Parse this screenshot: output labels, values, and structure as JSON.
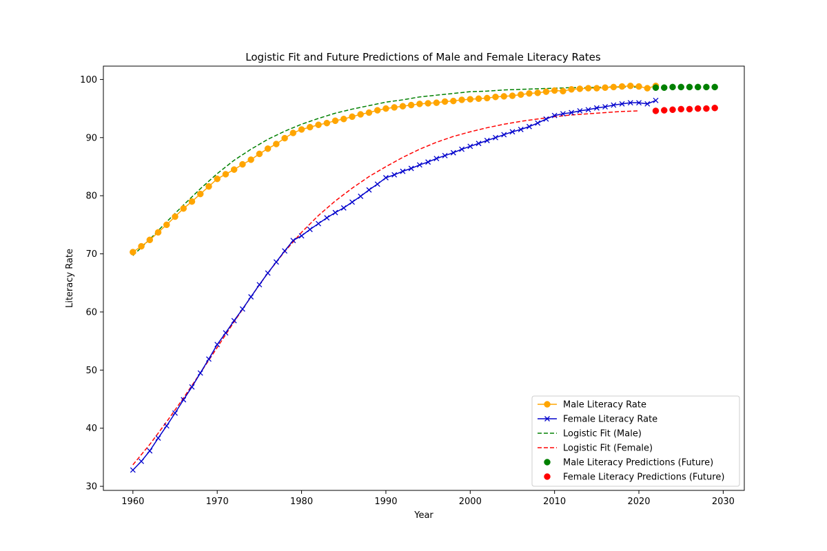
{
  "chart_data": {
    "type": "line",
    "title": "Logistic Fit and Future Predictions of Male and Female Literacy Rates",
    "xlabel": "Year",
    "ylabel": "Literacy Rate",
    "xlim": [
      1956.5,
      2032.5
    ],
    "ylim": [
      29.3,
      102.3
    ],
    "xticks": [
      1960,
      1970,
      1980,
      1990,
      2000,
      2010,
      2020,
      2030
    ],
    "yticks": [
      30,
      40,
      50,
      60,
      70,
      80,
      90,
      100
    ],
    "grid": false,
    "legend_position": "lower-right",
    "series": [
      {
        "name": "Male Literacy Rate",
        "kind": "line-marker-circle",
        "color": "#ffa500",
        "x_start": 1960,
        "values": [
          70.3,
          71.3,
          72.4,
          73.7,
          75.0,
          76.4,
          77.8,
          79.0,
          80.3,
          81.6,
          82.9,
          83.7,
          84.5,
          85.4,
          86.2,
          87.2,
          88.1,
          88.9,
          89.9,
          90.8,
          91.4,
          91.8,
          92.2,
          92.5,
          92.9,
          93.2,
          93.6,
          94.0,
          94.3,
          94.7,
          95.0,
          95.2,
          95.4,
          95.6,
          95.8,
          95.9,
          96.0,
          96.2,
          96.3,
          96.5,
          96.6,
          96.7,
          96.8,
          97.0,
          97.1,
          97.2,
          97.4,
          97.6,
          97.7,
          97.9,
          98.1,
          98.0,
          98.3,
          98.4,
          98.5,
          98.5,
          98.6,
          98.7,
          98.8,
          98.9,
          98.8,
          98.5,
          98.9
        ]
      },
      {
        "name": "Female Literacy Rate",
        "kind": "line-marker-x",
        "color": "#0000cc",
        "x_start": 1960,
        "values": [
          32.8,
          34.3,
          36.1,
          38.3,
          40.4,
          42.6,
          44.9,
          47.1,
          49.5,
          51.9,
          54.4,
          56.4,
          58.5,
          60.5,
          62.6,
          64.7,
          66.7,
          68.6,
          70.5,
          72.3,
          73.1,
          74.2,
          75.2,
          76.2,
          77.1,
          77.9,
          78.9,
          79.9,
          81.0,
          82.0,
          83.1,
          83.6,
          84.2,
          84.7,
          85.3,
          85.8,
          86.4,
          86.9,
          87.4,
          88.0,
          88.5,
          89.0,
          89.5,
          90.0,
          90.5,
          91.0,
          91.4,
          91.9,
          92.5,
          93.2,
          93.8,
          94.1,
          94.3,
          94.6,
          94.8,
          95.1,
          95.3,
          95.6,
          95.8,
          96.0,
          96.0,
          95.8,
          96.4
        ]
      },
      {
        "name": "Logistic Fit (Male)",
        "kind": "dashed-line",
        "color": "#008000",
        "x_start": 1960,
        "x_step": 2,
        "values": [
          69.7,
          72.5,
          75.5,
          78.4,
          81.2,
          83.8,
          86.1,
          88.0,
          89.7,
          91.1,
          92.3,
          93.3,
          94.2,
          94.9,
          95.5,
          96.1,
          96.5,
          97.0,
          97.3,
          97.6,
          97.9,
          98.0,
          98.2,
          98.3,
          98.4,
          98.5,
          98.6,
          98.6,
          98.7,
          98.7,
          98.7
        ]
      },
      {
        "name": "Logistic Fit (Female)",
        "kind": "dashed-line",
        "color": "#ff0000",
        "x_start": 1960,
        "x_step": 2,
        "values": [
          33.7,
          37.2,
          41.1,
          45.2,
          49.5,
          53.9,
          58.3,
          62.6,
          66.7,
          70.4,
          73.7,
          76.6,
          79.1,
          81.3,
          83.3,
          85.0,
          86.6,
          88.0,
          89.2,
          90.2,
          91.0,
          91.7,
          92.3,
          92.8,
          93.2,
          93.6,
          93.9,
          94.1,
          94.3,
          94.5,
          94.6
        ]
      },
      {
        "name": "Male Literacy Predictions (Future)",
        "kind": "scatter",
        "color": "#008000",
        "x_start": 2022,
        "values": [
          98.6,
          98.6,
          98.7,
          98.7,
          98.7,
          98.7,
          98.7,
          98.7
        ]
      },
      {
        "name": "Female Literacy Predictions (Future)",
        "kind": "scatter",
        "color": "#ff0000",
        "x_start": 2022,
        "values": [
          94.6,
          94.7,
          94.8,
          94.9,
          94.9,
          95.0,
          95.0,
          95.1
        ]
      }
    ]
  }
}
